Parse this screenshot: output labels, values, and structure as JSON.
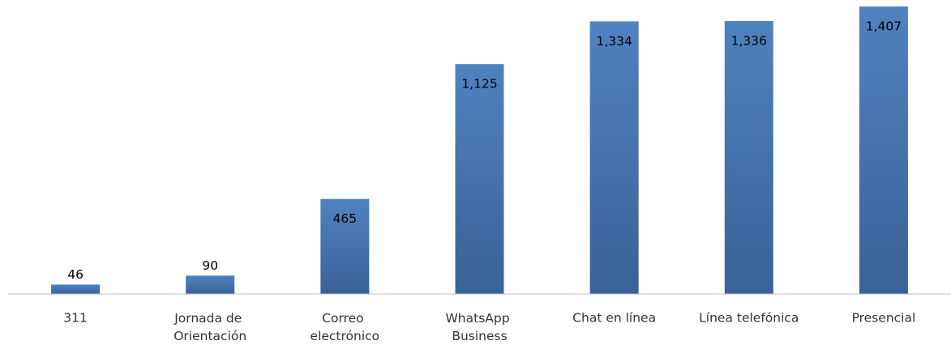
{
  "chart_data": {
    "type": "bar",
    "categories": [
      "311",
      "Jornada de Orientación",
      "Correo electrónico",
      "WhatsApp Business",
      "Chat en línea",
      "Línea telefónica",
      "Presencial"
    ],
    "values": [
      46,
      90,
      465,
      1125,
      1334,
      1336,
      1407
    ],
    "value_labels": [
      "46",
      "90",
      "465",
      "1,125",
      "1,334",
      "1,336",
      "1,407"
    ],
    "color": "#4a7ab5"
  }
}
